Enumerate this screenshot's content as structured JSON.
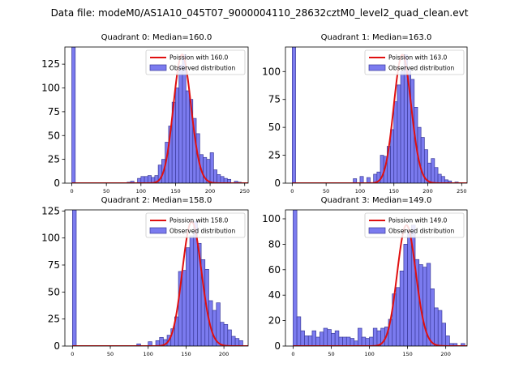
{
  "figure": {
    "title": "Data file: modeM0/AS1A10_045T07_9000004110_28632cztM0_level2_quad_clean.evt"
  },
  "colors": {
    "bar_fill": "#7b7bef",
    "bar_edge": "#3a3a9a",
    "curve": "#e01010"
  },
  "chart_data": [
    {
      "type": "bar",
      "title": "Quadrant 0: Median=160.0",
      "median": 160.0,
      "bin_width": 5,
      "xlim": [
        -10,
        255
      ],
      "ylim": [
        0,
        143
      ],
      "xticks": [
        0,
        50,
        100,
        150,
        200,
        250
      ],
      "yticks": [
        0,
        25,
        50,
        75,
        100,
        125
      ],
      "legend": {
        "position": "top-right",
        "entries": [
          "Poission with 160.0",
          "Observed distribution"
        ]
      },
      "bars": [
        {
          "x": 0,
          "y": 143
        },
        {
          "x": 80,
          "y": 1
        },
        {
          "x": 85,
          "y": 2
        },
        {
          "x": 95,
          "y": 5
        },
        {
          "x": 100,
          "y": 7
        },
        {
          "x": 105,
          "y": 7
        },
        {
          "x": 110,
          "y": 8
        },
        {
          "x": 115,
          "y": 6
        },
        {
          "x": 120,
          "y": 8
        },
        {
          "x": 125,
          "y": 19
        },
        {
          "x": 130,
          "y": 25
        },
        {
          "x": 135,
          "y": 43
        },
        {
          "x": 140,
          "y": 60
        },
        {
          "x": 145,
          "y": 85
        },
        {
          "x": 150,
          "y": 100
        },
        {
          "x": 155,
          "y": 124
        },
        {
          "x": 160,
          "y": 135
        },
        {
          "x": 165,
          "y": 97
        },
        {
          "x": 170,
          "y": 88
        },
        {
          "x": 175,
          "y": 68
        },
        {
          "x": 180,
          "y": 52
        },
        {
          "x": 185,
          "y": 30
        },
        {
          "x": 190,
          "y": 27
        },
        {
          "x": 195,
          "y": 25
        },
        {
          "x": 200,
          "y": 32
        },
        {
          "x": 205,
          "y": 14
        },
        {
          "x": 210,
          "y": 9
        },
        {
          "x": 215,
          "y": 7
        },
        {
          "x": 220,
          "y": 5
        },
        {
          "x": 225,
          "y": 4
        },
        {
          "x": 235,
          "y": 2
        },
        {
          "x": 240,
          "y": 1
        }
      ]
    },
    {
      "type": "bar",
      "title": "Quadrant 1: Median=163.0",
      "median": 163.0,
      "bin_width": 5,
      "xlim": [
        -10,
        258
      ],
      "ylim": [
        0,
        122
      ],
      "xticks": [
        0,
        50,
        100,
        150,
        200,
        250
      ],
      "yticks": [
        0,
        25,
        50,
        75,
        100
      ],
      "legend": {
        "position": "top-right",
        "entries": [
          "Poission with 163.0",
          "Observed distribution"
        ]
      },
      "bars": [
        {
          "x": 0,
          "y": 122
        },
        {
          "x": 90,
          "y": 4
        },
        {
          "x": 100,
          "y": 6
        },
        {
          "x": 110,
          "y": 5
        },
        {
          "x": 120,
          "y": 8
        },
        {
          "x": 125,
          "y": 10
        },
        {
          "x": 130,
          "y": 25
        },
        {
          "x": 135,
          "y": 24
        },
        {
          "x": 140,
          "y": 33
        },
        {
          "x": 145,
          "y": 48
        },
        {
          "x": 150,
          "y": 73
        },
        {
          "x": 155,
          "y": 88
        },
        {
          "x": 160,
          "y": 100
        },
        {
          "x": 165,
          "y": 115
        },
        {
          "x": 170,
          "y": 102
        },
        {
          "x": 175,
          "y": 93
        },
        {
          "x": 180,
          "y": 68
        },
        {
          "x": 185,
          "y": 50
        },
        {
          "x": 190,
          "y": 41
        },
        {
          "x": 195,
          "y": 30
        },
        {
          "x": 200,
          "y": 18
        },
        {
          "x": 205,
          "y": 22
        },
        {
          "x": 210,
          "y": 14
        },
        {
          "x": 215,
          "y": 8
        },
        {
          "x": 220,
          "y": 6
        },
        {
          "x": 225,
          "y": 3
        },
        {
          "x": 230,
          "y": 2
        },
        {
          "x": 240,
          "y": 1
        }
      ]
    },
    {
      "type": "bar",
      "title": "Quadrant 2: Median=158.0",
      "median": 158.0,
      "bin_width": 5,
      "xlim": [
        -10,
        232
      ],
      "ylim": [
        0,
        126
      ],
      "xticks": [
        0,
        50,
        100,
        150,
        200
      ],
      "yticks": [
        0,
        25,
        50,
        75,
        100,
        125
      ],
      "legend": {
        "position": "top-right",
        "entries": [
          "Poission with 158.0",
          "Observed distribution"
        ]
      },
      "bars": [
        {
          "x": 0,
          "y": 126
        },
        {
          "x": 85,
          "y": 2
        },
        {
          "x": 100,
          "y": 4
        },
        {
          "x": 110,
          "y": 5
        },
        {
          "x": 115,
          "y": 8
        },
        {
          "x": 120,
          "y": 6
        },
        {
          "x": 125,
          "y": 10
        },
        {
          "x": 130,
          "y": 16
        },
        {
          "x": 135,
          "y": 27
        },
        {
          "x": 140,
          "y": 69
        },
        {
          "x": 145,
          "y": 70
        },
        {
          "x": 150,
          "y": 91
        },
        {
          "x": 155,
          "y": 102
        },
        {
          "x": 160,
          "y": 115
        },
        {
          "x": 165,
          "y": 95
        },
        {
          "x": 170,
          "y": 80
        },
        {
          "x": 175,
          "y": 71
        },
        {
          "x": 180,
          "y": 42
        },
        {
          "x": 185,
          "y": 33
        },
        {
          "x": 190,
          "y": 40
        },
        {
          "x": 195,
          "y": 22
        },
        {
          "x": 200,
          "y": 20
        },
        {
          "x": 205,
          "y": 15
        },
        {
          "x": 210,
          "y": 9
        },
        {
          "x": 215,
          "y": 7
        },
        {
          "x": 220,
          "y": 5
        }
      ]
    },
    {
      "type": "bar",
      "title": "Quadrant 3: Median=149.0",
      "median": 149.0,
      "bin_width": 5,
      "xlim": [
        -10,
        228
      ],
      "ylim": [
        0,
        107
      ],
      "xticks": [
        0,
        50,
        100,
        150,
        200
      ],
      "yticks": [
        0,
        20,
        40,
        60,
        80,
        100
      ],
      "legend": {
        "position": "top-right",
        "entries": [
          "Poission with 149.0",
          "Observed distribution"
        ]
      },
      "bars": [
        {
          "x": 0,
          "y": 107
        },
        {
          "x": 5,
          "y": 23
        },
        {
          "x": 10,
          "y": 12
        },
        {
          "x": 15,
          "y": 8
        },
        {
          "x": 20,
          "y": 8
        },
        {
          "x": 25,
          "y": 12
        },
        {
          "x": 30,
          "y": 7
        },
        {
          "x": 35,
          "y": 11
        },
        {
          "x": 40,
          "y": 14
        },
        {
          "x": 45,
          "y": 13
        },
        {
          "x": 50,
          "y": 10
        },
        {
          "x": 55,
          "y": 12
        },
        {
          "x": 60,
          "y": 7
        },
        {
          "x": 65,
          "y": 7
        },
        {
          "x": 70,
          "y": 7
        },
        {
          "x": 75,
          "y": 6
        },
        {
          "x": 80,
          "y": 4
        },
        {
          "x": 85,
          "y": 14
        },
        {
          "x": 90,
          "y": 7
        },
        {
          "x": 95,
          "y": 6
        },
        {
          "x": 100,
          "y": 7
        },
        {
          "x": 105,
          "y": 14
        },
        {
          "x": 110,
          "y": 12
        },
        {
          "x": 115,
          "y": 14
        },
        {
          "x": 120,
          "y": 15
        },
        {
          "x": 125,
          "y": 21
        },
        {
          "x": 130,
          "y": 41
        },
        {
          "x": 135,
          "y": 46
        },
        {
          "x": 140,
          "y": 59
        },
        {
          "x": 145,
          "y": 80
        },
        {
          "x": 150,
          "y": 90
        },
        {
          "x": 155,
          "y": 95
        },
        {
          "x": 160,
          "y": 68
        },
        {
          "x": 165,
          "y": 64
        },
        {
          "x": 170,
          "y": 62
        },
        {
          "x": 175,
          "y": 65
        },
        {
          "x": 180,
          "y": 45
        },
        {
          "x": 185,
          "y": 30
        },
        {
          "x": 190,
          "y": 28
        },
        {
          "x": 195,
          "y": 18
        },
        {
          "x": 200,
          "y": 8
        },
        {
          "x": 205,
          "y": 2
        },
        {
          "x": 210,
          "y": 2
        },
        {
          "x": 220,
          "y": 2
        }
      ]
    }
  ]
}
